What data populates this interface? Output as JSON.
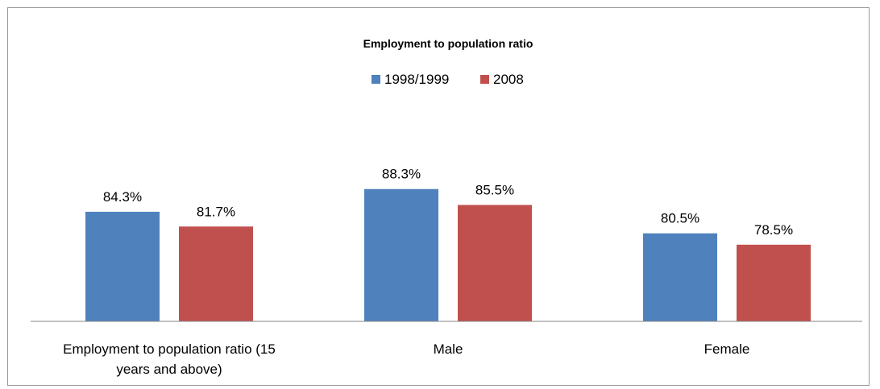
{
  "chart_data": {
    "type": "bar",
    "title": "Employment to population ratio",
    "categories": [
      [
        "Employment to population ratio (15",
        "years and above)"
      ],
      [
        "Male"
      ],
      [
        "Female"
      ]
    ],
    "series": [
      {
        "name": "1998/1999",
        "color": "#4F81BD",
        "values": [
          84.3,
          88.3,
          80.5
        ]
      },
      {
        "name": "2008",
        "color": "#C0504D",
        "values": [
          81.7,
          85.5,
          78.5
        ]
      }
    ],
    "value_suffix": "%",
    "legend_position": "top",
    "grid": false
  }
}
